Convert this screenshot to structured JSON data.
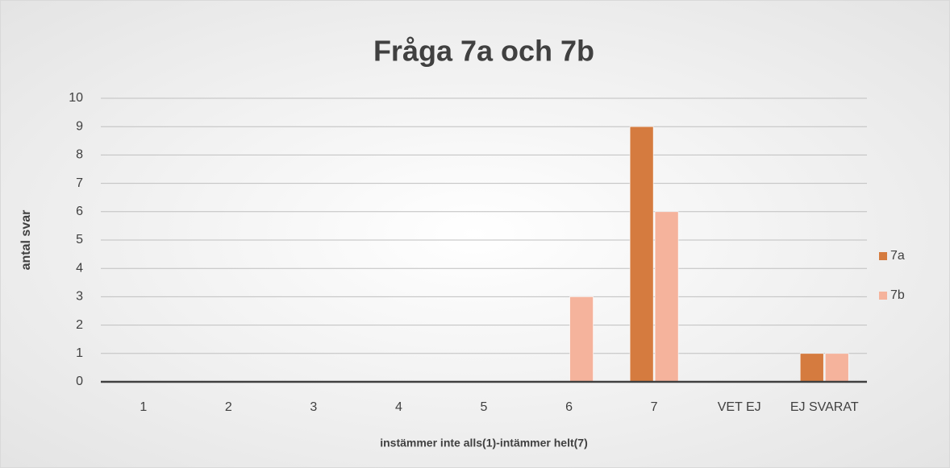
{
  "chart_data": {
    "type": "bar",
    "title": "Fråga 7a och 7b",
    "x_label": "instämmer inte alls(1)-intämmer helt(7)",
    "y_label": "antal svar",
    "categories": [
      "1",
      "2",
      "3",
      "4",
      "5",
      "6",
      "7",
      "VET EJ",
      "EJ SVARAT"
    ],
    "series": [
      {
        "name": "7a",
        "color": "#d57b3f",
        "values": [
          0,
          0,
          0,
          0,
          0,
          0,
          9,
          0,
          1
        ]
      },
      {
        "name": "7b",
        "color": "#f5b39c",
        "values": [
          0,
          0,
          0,
          0,
          0,
          3,
          6,
          0,
          1
        ]
      }
    ],
    "ylim": [
      0,
      10
    ],
    "yticks": [
      0,
      1,
      2,
      3,
      4,
      5,
      6,
      7,
      8,
      9,
      10
    ],
    "grid": true,
    "legend": "right"
  }
}
